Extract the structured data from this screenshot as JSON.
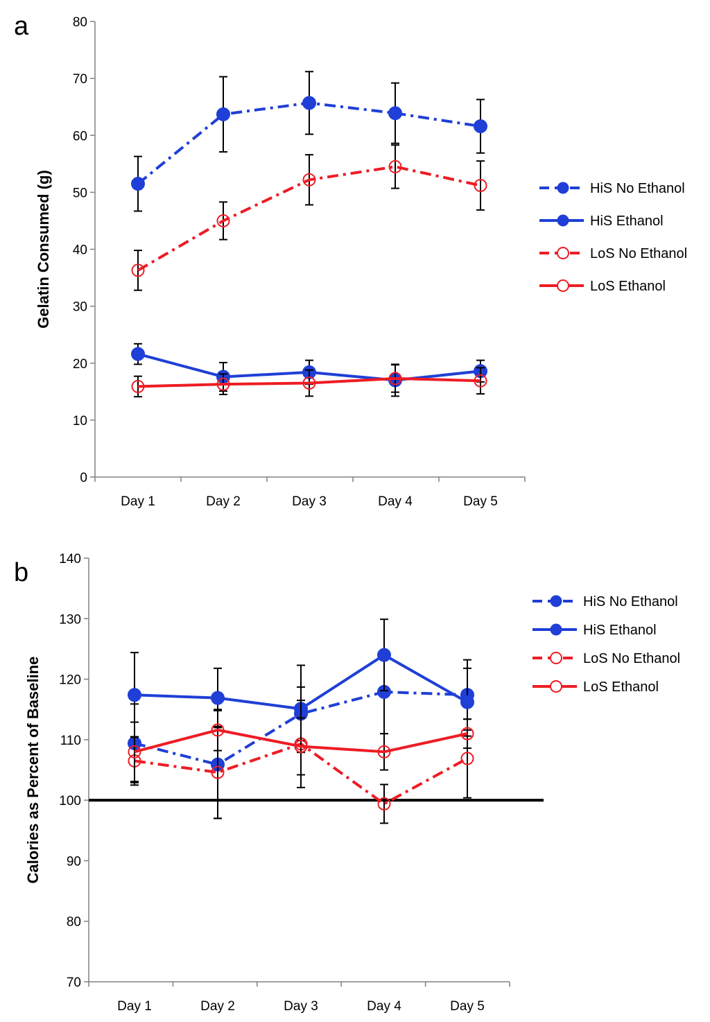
{
  "chart_data": [
    {
      "type": "line",
      "panel_label": "a",
      "title": "",
      "xlabel": "",
      "ylabel": "Gelatin Consumed (g)",
      "ylim": [
        0,
        80
      ],
      "ytick_step": 10,
      "yticks": [
        "0",
        "10",
        "20",
        "30",
        "40",
        "50",
        "60",
        "70",
        "80"
      ],
      "categories": [
        "Day 1",
        "Day 2",
        "Day 3",
        "Day 4",
        "Day 5"
      ],
      "grid": false,
      "legend_position": "right",
      "series": [
        {
          "name": "HiS No Ethanol",
          "color": "#1f3fd6",
          "dash": "dashdot",
          "marker": "filled",
          "values": [
            51.5,
            63.7,
            65.7,
            63.9,
            61.6
          ],
          "errors": [
            4.8,
            6.6,
            5.5,
            5.3,
            4.7
          ]
        },
        {
          "name": "HiS Ethanol",
          "color": "#1f3fd6",
          "dash": "solid",
          "marker": "filled",
          "values": [
            21.6,
            17.6,
            18.4,
            17.0,
            18.6
          ],
          "errors": [
            1.8,
            2.5,
            2.1,
            2.8,
            1.9
          ]
        },
        {
          "name": "LoS No Ethanol",
          "color": "#ee1c24",
          "dash": "dashdot",
          "marker": "open",
          "values": [
            36.3,
            45.0,
            52.2,
            54.5,
            51.2
          ],
          "errors": [
            3.5,
            3.3,
            4.4,
            3.8,
            4.3
          ]
        },
        {
          "name": "LoS Ethanol",
          "color": "#ee1c24",
          "dash": "solid",
          "marker": "open",
          "values": [
            15.9,
            16.3,
            16.5,
            17.3,
            16.9
          ],
          "errors": [
            1.8,
            1.8,
            2.3,
            2.4,
            2.3
          ]
        }
      ]
    },
    {
      "type": "line",
      "panel_label": "b",
      "title": "",
      "xlabel": "",
      "ylabel": "Calories as Percent of Baseline",
      "ylim": [
        70,
        140
      ],
      "ytick_step": 10,
      "yticks": [
        "70",
        "80",
        "90",
        "100",
        "110",
        "120",
        "130",
        "140"
      ],
      "categories": [
        "Day 1",
        "Day 2",
        "Day 3",
        "Day 4",
        "Day 5"
      ],
      "grid": false,
      "reference_line": 100,
      "legend_position": "top-right",
      "series": [
        {
          "name": "HiS No Ethanol",
          "color": "#1f3fd6",
          "dash": "dashdot",
          "marker": "filled",
          "values": [
            109.4,
            105.9,
            114.3,
            117.9,
            117.4
          ],
          "errors": [
            6.5,
            8.9,
            4.4,
            6.9,
            5.8
          ]
        },
        {
          "name": "HiS Ethanol",
          "color": "#1f3fd6",
          "dash": "solid",
          "marker": "filled",
          "values": [
            117.4,
            116.9,
            115.1,
            124.0,
            116.2
          ],
          "errors": [
            7.0,
            4.9,
            7.2,
            5.9,
            5.6
          ]
        },
        {
          "name": "LoS No Ethanol",
          "color": "#ee1c24",
          "dash": "dashdot",
          "marker": "open",
          "values": [
            106.5,
            104.6,
            109.3,
            99.4,
            106.9
          ],
          "errors": [
            4.0,
            7.6,
            7.2,
            3.2,
            6.5
          ]
        },
        {
          "name": "LoS Ethanol",
          "color": "#ee1c24",
          "dash": "solid",
          "marker": "open",
          "values": [
            108.0,
            111.6,
            108.9,
            108.0,
            111.0
          ],
          "errors": [
            4.9,
            3.4,
            4.7,
            3.0,
            2.4
          ]
        }
      ]
    }
  ]
}
